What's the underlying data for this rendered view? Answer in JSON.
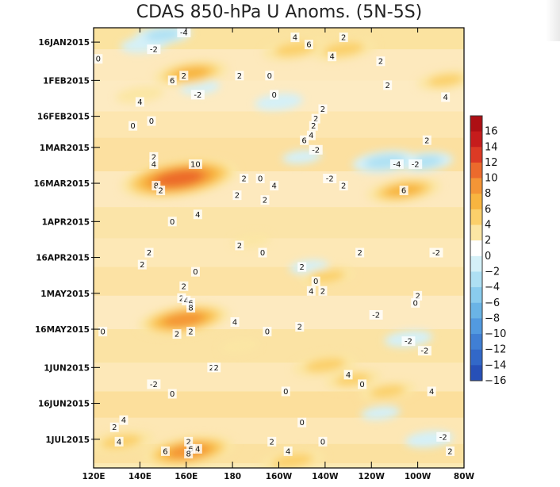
{
  "chart_data": {
    "type": "heatmap",
    "title": "CDAS 850-hPa U Anoms. (5N-5S)",
    "xlabel": "",
    "ylabel": "",
    "x_ticks": [
      "120E",
      "140E",
      "160E",
      "180",
      "160W",
      "140W",
      "120W",
      "100W",
      "80W"
    ],
    "y_ticks": [
      "16JAN2015",
      "1FEB2015",
      "16FEB2015",
      "1MAR2015",
      "16MAR2015",
      "1APR2015",
      "16APR2015",
      "1MAY2015",
      "16MAY2015",
      "1JUN2015",
      "16JUN2015",
      "1JUL2015"
    ],
    "xlim": [
      120,
      280
    ],
    "ylim": [
      "2015-01-10",
      "2015-07-13"
    ],
    "colorbar": {
      "levels": [
        -16,
        -14,
        -12,
        -10,
        -8,
        -6,
        -4,
        -2,
        0,
        2,
        4,
        6,
        8,
        10,
        12,
        14,
        16
      ],
      "tick_labels": [
        "16",
        "14",
        "12",
        "10",
        "8",
        "6",
        "4",
        "2",
        "0",
        "−2",
        "−4",
        "−6",
        "−8",
        "−10",
        "−12",
        "−14",
        "−16"
      ],
      "colors": [
        "#ad0f14",
        "#c61c1c",
        "#dc3a25",
        "#ec6a2c",
        "#f49536",
        "#f8b540",
        "#fbd06b",
        "#fbe6a4",
        "#ffffff",
        "#d4f0f8",
        "#aee0f3",
        "#8accee",
        "#6ab4e6",
        "#529ae0",
        "#407fd4",
        "#3268c8",
        "#2750b8"
      ]
    },
    "anomalies": [
      {
        "x": 157,
        "y": "2015-03-14",
        "value": 11
      },
      {
        "x": 162,
        "y": "2015-01-29",
        "value": 6
      },
      {
        "x": 159,
        "y": "2015-05-12",
        "value": 8
      },
      {
        "x": 161,
        "y": "2015-07-06",
        "value": 8
      },
      {
        "x": 132,
        "y": "2015-07-02",
        "value": 5
      },
      {
        "x": 207,
        "y": "2015-01-19",
        "value": 5
      },
      {
        "x": 228,
        "y": "2015-01-19",
        "value": 5
      },
      {
        "x": 206,
        "y": "2015-07-10",
        "value": 5
      },
      {
        "x": 232,
        "y": "2015-06-06",
        "value": 4
      },
      {
        "x": 254,
        "y": "2015-03-19",
        "value": 6
      },
      {
        "x": 221,
        "y": "2015-04-24",
        "value": 4
      },
      {
        "x": 220,
        "y": "2015-05-31",
        "value": 5
      },
      {
        "x": 272,
        "y": "2015-02-01",
        "value": 4
      },
      {
        "x": 247,
        "y": "2015-06-11",
        "value": 4
      },
      {
        "x": 140,
        "y": "2015-02-07",
        "value": 3
      },
      {
        "x": 246,
        "y": "2015-03-07",
        "value": -5
      },
      {
        "x": 263,
        "y": "2015-03-07",
        "value": -4
      },
      {
        "x": 210,
        "y": "2015-03-05",
        "value": -2
      },
      {
        "x": 142,
        "y": "2015-01-17",
        "value": -3
      },
      {
        "x": 150,
        "y": "2015-01-13",
        "value": -4
      },
      {
        "x": 166,
        "y": "2015-02-04",
        "value": -2
      },
      {
        "x": 200,
        "y": "2015-02-10",
        "value": -3
      },
      {
        "x": 256,
        "y": "2015-05-20",
        "value": -3
      },
      {
        "x": 244,
        "y": "2015-06-20",
        "value": -2
      },
      {
        "x": 265,
        "y": "2015-07-01",
        "value": -3
      },
      {
        "x": 213,
        "y": "2015-04-20",
        "value": -2
      },
      {
        "x": 188,
        "y": "2015-04-09",
        "value": 2
      },
      {
        "x": 183,
        "y": "2015-05-23",
        "value": 2
      }
    ],
    "contour_labels": [
      {
        "text": "-4",
        "x": 159,
        "y": "2015-01-12"
      },
      {
        "text": "4",
        "x": 207,
        "y": "2015-01-14"
      },
      {
        "text": "2",
        "x": 228,
        "y": "2015-01-14"
      },
      {
        "text": "6",
        "x": 213,
        "y": "2015-01-17"
      },
      {
        "text": "-2",
        "x": 146,
        "y": "2015-01-19"
      },
      {
        "text": "4",
        "x": 223,
        "y": "2015-01-22"
      },
      {
        "text": "2",
        "x": 244,
        "y": "2015-01-24"
      },
      {
        "text": "0",
        "x": 122,
        "y": "2015-01-23"
      },
      {
        "text": "2",
        "x": 159,
        "y": "2015-01-30"
      },
      {
        "text": "6",
        "x": 154,
        "y": "2015-02-01"
      },
      {
        "text": "2",
        "x": 183,
        "y": "2015-01-30"
      },
      {
        "text": "0",
        "x": 196,
        "y": "2015-01-30"
      },
      {
        "text": "2",
        "x": 247,
        "y": "2015-02-03"
      },
      {
        "text": "-2",
        "x": 165,
        "y": "2015-02-07"
      },
      {
        "text": "0",
        "x": 198,
        "y": "2015-02-07"
      },
      {
        "text": "4",
        "x": 140,
        "y": "2015-02-10"
      },
      {
        "text": "2",
        "x": 219,
        "y": "2015-02-13"
      },
      {
        "text": "4",
        "x": 272,
        "y": "2015-02-08"
      },
      {
        "text": "0",
        "x": 145,
        "y": "2015-02-18"
      },
      {
        "text": "2",
        "x": 216,
        "y": "2015-02-17"
      },
      {
        "text": "0",
        "x": 137,
        "y": "2015-02-20"
      },
      {
        "text": "2",
        "x": 215,
        "y": "2015-02-20"
      },
      {
        "text": "4",
        "x": 214,
        "y": "2015-02-24"
      },
      {
        "text": "6",
        "x": 211,
        "y": "2015-02-26"
      },
      {
        "text": "2",
        "x": 264,
        "y": "2015-02-26"
      },
      {
        "text": "-2",
        "x": 216,
        "y": "2015-03-02"
      },
      {
        "text": "2",
        "x": 146,
        "y": "2015-03-05"
      },
      {
        "text": "4",
        "x": 146,
        "y": "2015-03-08"
      },
      {
        "text": "10",
        "x": 164,
        "y": "2015-03-08"
      },
      {
        "text": "-4",
        "x": 251,
        "y": "2015-03-08"
      },
      {
        "text": "-2",
        "x": 259,
        "y": "2015-03-08"
      },
      {
        "text": "2",
        "x": 185,
        "y": "2015-03-14"
      },
      {
        "text": "0",
        "x": 192,
        "y": "2015-03-14"
      },
      {
        "text": "-2",
        "x": 222,
        "y": "2015-03-14"
      },
      {
        "text": "8",
        "x": 147,
        "y": "2015-03-17"
      },
      {
        "text": "2",
        "x": 149,
        "y": "2015-03-19"
      },
      {
        "text": "4",
        "x": 198,
        "y": "2015-03-17"
      },
      {
        "text": "2",
        "x": 228,
        "y": "2015-03-17"
      },
      {
        "text": "6",
        "x": 254,
        "y": "2015-03-19"
      },
      {
        "text": "2",
        "x": 182,
        "y": "2015-03-21"
      },
      {
        "text": "2",
        "x": 194,
        "y": "2015-03-23"
      },
      {
        "text": "4",
        "x": 165,
        "y": "2015-03-29"
      },
      {
        "text": "0",
        "x": 154,
        "y": "2015-04-01"
      },
      {
        "text": "2",
        "x": 183,
        "y": "2015-04-11"
      },
      {
        "text": "2",
        "x": 235,
        "y": "2015-04-14"
      },
      {
        "text": "-2",
        "x": 268,
        "y": "2015-04-14"
      },
      {
        "text": "2",
        "x": 144,
        "y": "2015-04-14"
      },
      {
        "text": "0",
        "x": 193,
        "y": "2015-04-14"
      },
      {
        "text": "2",
        "x": 141,
        "y": "2015-04-19"
      },
      {
        "text": "0",
        "x": 164,
        "y": "2015-04-22"
      },
      {
        "text": "2",
        "x": 210,
        "y": "2015-04-20"
      },
      {
        "text": "0",
        "x": 216,
        "y": "2015-04-26"
      },
      {
        "text": "2",
        "x": 159,
        "y": "2015-04-28"
      },
      {
        "text": "4",
        "x": 214,
        "y": "2015-04-30"
      },
      {
        "text": "2",
        "x": 219,
        "y": "2015-04-30"
      },
      {
        "text": "2",
        "x": 158,
        "y": "2015-05-03"
      },
      {
        "text": "4",
        "x": 160,
        "y": "2015-05-04"
      },
      {
        "text": "6",
        "x": 162,
        "y": "2015-05-05"
      },
      {
        "text": "8",
        "x": 162,
        "y": "2015-05-07"
      },
      {
        "text": "2",
        "x": 260,
        "y": "2015-05-02"
      },
      {
        "text": "0",
        "x": 259,
        "y": "2015-05-05"
      },
      {
        "text": "4",
        "x": 181,
        "y": "2015-05-13"
      },
      {
        "text": "2",
        "x": 162,
        "y": "2015-05-17"
      },
      {
        "text": "-2",
        "x": 242,
        "y": "2015-05-10"
      },
      {
        "text": "0",
        "x": 124,
        "y": "2015-05-17"
      },
      {
        "text": "2",
        "x": 156,
        "y": "2015-05-18"
      },
      {
        "text": "0",
        "x": 195,
        "y": "2015-05-17"
      },
      {
        "text": "2",
        "x": 209,
        "y": "2015-05-15"
      },
      {
        "text": "-2",
        "x": 256,
        "y": "2015-05-21"
      },
      {
        "text": "-2",
        "x": 263,
        "y": "2015-05-25"
      },
      {
        "text": "2",
        "x": 171,
        "y": "2015-06-01"
      },
      {
        "text": "2",
        "x": 173,
        "y": "2015-06-01"
      },
      {
        "text": "4",
        "x": 230,
        "y": "2015-06-04"
      },
      {
        "text": "0",
        "x": 236,
        "y": "2015-06-08"
      },
      {
        "text": "-2",
        "x": 146,
        "y": "2015-06-08"
      },
      {
        "text": "0",
        "x": 154,
        "y": "2015-06-12"
      },
      {
        "text": "0",
        "x": 203,
        "y": "2015-06-11"
      },
      {
        "text": "4",
        "x": 266,
        "y": "2015-06-11"
      },
      {
        "text": "4",
        "x": 133,
        "y": "2015-06-23"
      },
      {
        "text": "2",
        "x": 129,
        "y": "2015-06-26"
      },
      {
        "text": "0",
        "x": 210,
        "y": "2015-06-24"
      },
      {
        "text": "4",
        "x": 131,
        "y": "2015-07-02"
      },
      {
        "text": "2",
        "x": 161,
        "y": "2015-07-02"
      },
      {
        "text": "6",
        "x": 151,
        "y": "2015-07-06"
      },
      {
        "text": "4",
        "x": 165,
        "y": "2015-07-05"
      },
      {
        "text": "6",
        "x": 162,
        "y": "2015-07-05"
      },
      {
        "text": "2",
        "x": 197,
        "y": "2015-07-02"
      },
      {
        "text": "0",
        "x": 219,
        "y": "2015-07-02"
      },
      {
        "text": "-2",
        "x": 271,
        "y": "2015-06-30"
      },
      {
        "text": "8",
        "x": 161,
        "y": "2015-07-07"
      },
      {
        "text": "4",
        "x": 204,
        "y": "2015-07-06"
      },
      {
        "text": "2",
        "x": 274,
        "y": "2015-07-06"
      }
    ]
  }
}
